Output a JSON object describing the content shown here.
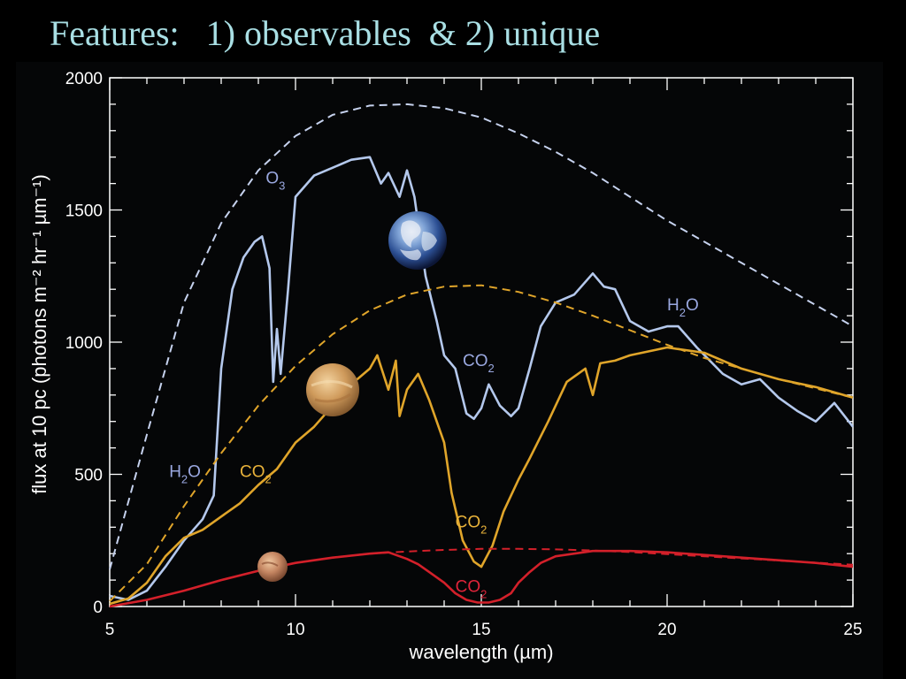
{
  "slide": {
    "title": "Features:   1) observables  & 2) unique"
  },
  "chart_data": {
    "type": "line",
    "xlabel": "wavelength (µm)",
    "ylabel": "flux at 10 pc (photons m⁻² hr⁻¹ µm⁻¹)",
    "xlim": [
      5,
      25
    ],
    "ylim": [
      0,
      2000
    ],
    "xticks": [
      5,
      10,
      15,
      20,
      25
    ],
    "yticks": [
      0,
      500,
      1000,
      1500,
      2000
    ],
    "grid": false,
    "colors": {
      "earth": "#b4c8ec",
      "earth_blackbody": "#c6d2ee",
      "venus": "#e0a52a",
      "mars": "#d3202a",
      "axes": "#ffffff"
    },
    "icons": [
      "earth-icon",
      "venus-icon",
      "mars-icon"
    ],
    "series": [
      {
        "color": "#b4c8ec",
        "style": "solid",
        "x": [
          5,
          5.5,
          6,
          6.5,
          7,
          7.5,
          7.8,
          8,
          8.3,
          8.6,
          8.9,
          9.1,
          9.3,
          9.4,
          9.5,
          9.6,
          9.8,
          10,
          10.5,
          11,
          11.5,
          12,
          12.3,
          12.5,
          12.8,
          13,
          13.2,
          13.5,
          13.8,
          14,
          14.3,
          14.6,
          14.8,
          15,
          15.2,
          15.5,
          15.8,
          16,
          16.3,
          16.6,
          17,
          17.5,
          18,
          18.3,
          18.6,
          19,
          19.5,
          20,
          20.3,
          20.8,
          21.5,
          22,
          22.5,
          23,
          23.5,
          24,
          24.5,
          25
        ],
        "y": [
          40,
          25,
          60,
          150,
          250,
          330,
          420,
          900,
          1200,
          1320,
          1380,
          1400,
          1280,
          850,
          1050,
          880,
          1200,
          1550,
          1630,
          1660,
          1690,
          1700,
          1600,
          1640,
          1550,
          1650,
          1550,
          1250,
          1080,
          950,
          900,
          730,
          710,
          750,
          840,
          760,
          720,
          750,
          900,
          1060,
          1150,
          1180,
          1260,
          1210,
          1200,
          1080,
          1040,
          1060,
          1060,
          980,
          880,
          840,
          860,
          790,
          740,
          700,
          770,
          680
        ]
      },
      {
        "color": "#c6d2ee",
        "style": "dashed",
        "x": [
          5,
          6,
          7,
          8,
          9,
          10,
          11,
          12,
          13,
          14,
          15,
          16,
          17,
          18,
          19,
          20,
          21,
          22,
          23,
          24,
          25
        ],
        "y": [
          140,
          650,
          1150,
          1450,
          1650,
          1780,
          1860,
          1895,
          1900,
          1885,
          1850,
          1790,
          1720,
          1640,
          1550,
          1460,
          1380,
          1300,
          1220,
          1140,
          1060
        ]
      },
      {
        "color": "#e0a52a",
        "style": "solid",
        "x": [
          5,
          5.5,
          6,
          6.5,
          7,
          7.5,
          8,
          8.5,
          9,
          9.5,
          10,
          10.5,
          11,
          11.5,
          12,
          12.2,
          12.5,
          12.7,
          12.8,
          13,
          13.3,
          13.6,
          14,
          14.2,
          14.5,
          14.8,
          15,
          15.3,
          15.6,
          15.8,
          16,
          16.3,
          16.8,
          17.3,
          17.8,
          18,
          18.2,
          18.6,
          19,
          20,
          21,
          22,
          23,
          24,
          25
        ],
        "y": [
          10,
          30,
          90,
          190,
          260,
          290,
          340,
          390,
          460,
          520,
          620,
          680,
          760,
          840,
          900,
          950,
          820,
          930,
          720,
          820,
          880,
          780,
          620,
          430,
          250,
          170,
          150,
          230,
          360,
          420,
          480,
          560,
          700,
          850,
          900,
          800,
          920,
          930,
          950,
          980,
          960,
          900,
          860,
          830,
          790
        ]
      },
      {
        "color": "#e0a52a",
        "style": "dashed",
        "x": [
          5,
          6,
          7,
          8,
          9,
          10,
          11,
          12,
          13,
          14,
          15,
          16,
          17,
          18,
          19,
          20,
          21,
          22,
          23,
          24,
          25
        ],
        "y": [
          20,
          160,
          380,
          580,
          760,
          910,
          1030,
          1120,
          1180,
          1210,
          1215,
          1190,
          1150,
          1100,
          1045,
          990,
          940,
          900,
          860,
          825,
          790
        ]
      },
      {
        "color": "#d3202a",
        "style": "solid",
        "x": [
          5,
          6,
          7,
          8,
          9,
          10,
          11,
          12,
          12.5,
          12.8,
          13,
          13.3,
          13.6,
          14,
          14.3,
          14.6,
          14.9,
          15.2,
          15.5,
          15.8,
          16,
          16.3,
          16.6,
          17,
          17.5,
          18,
          19,
          20,
          21,
          22,
          23,
          24,
          25
        ],
        "y": [
          0,
          25,
          60,
          100,
          135,
          165,
          185,
          200,
          205,
          190,
          180,
          160,
          130,
          90,
          50,
          25,
          15,
          15,
          25,
          50,
          90,
          130,
          165,
          190,
          200,
          210,
          210,
          205,
          195,
          185,
          175,
          165,
          150
        ]
      },
      {
        "color": "#d3202a",
        "style": "dashed",
        "x": [
          5,
          6,
          7,
          8,
          9,
          10,
          11,
          12,
          13,
          14,
          15,
          16,
          17,
          18,
          19,
          20,
          21,
          22,
          23,
          24,
          25
        ],
        "y": [
          0,
          25,
          60,
          100,
          135,
          165,
          185,
          200,
          208,
          214,
          218,
          218,
          216,
          212,
          206,
          198,
          190,
          182,
          174,
          166,
          158
        ]
      }
    ],
    "annotations": [
      {
        "text": "O",
        "sub": "3",
        "x": 9.2,
        "y": 1600,
        "color": "#9aa8e0"
      },
      {
        "text": "H",
        "sub": "2",
        "tail": "O",
        "x": 20,
        "y": 1120,
        "color": "#9aa8e0"
      },
      {
        "text": "CO",
        "sub": "2",
        "x": 14.5,
        "y": 910,
        "color": "#9aa8e0"
      },
      {
        "text": "H",
        "sub": "2",
        "tail": "O",
        "x": 6.6,
        "y": 490,
        "color": "#9aa8e0"
      },
      {
        "text": "CO",
        "sub": "2",
        "x": 8.5,
        "y": 490,
        "color": "#e8b23a"
      },
      {
        "text": "CO",
        "sub": "2",
        "x": 14.3,
        "y": 300,
        "color": "#e8b23a"
      },
      {
        "text": "CO",
        "sub": "2",
        "x": 14.3,
        "y": 55,
        "color": "#e0243a"
      }
    ]
  }
}
